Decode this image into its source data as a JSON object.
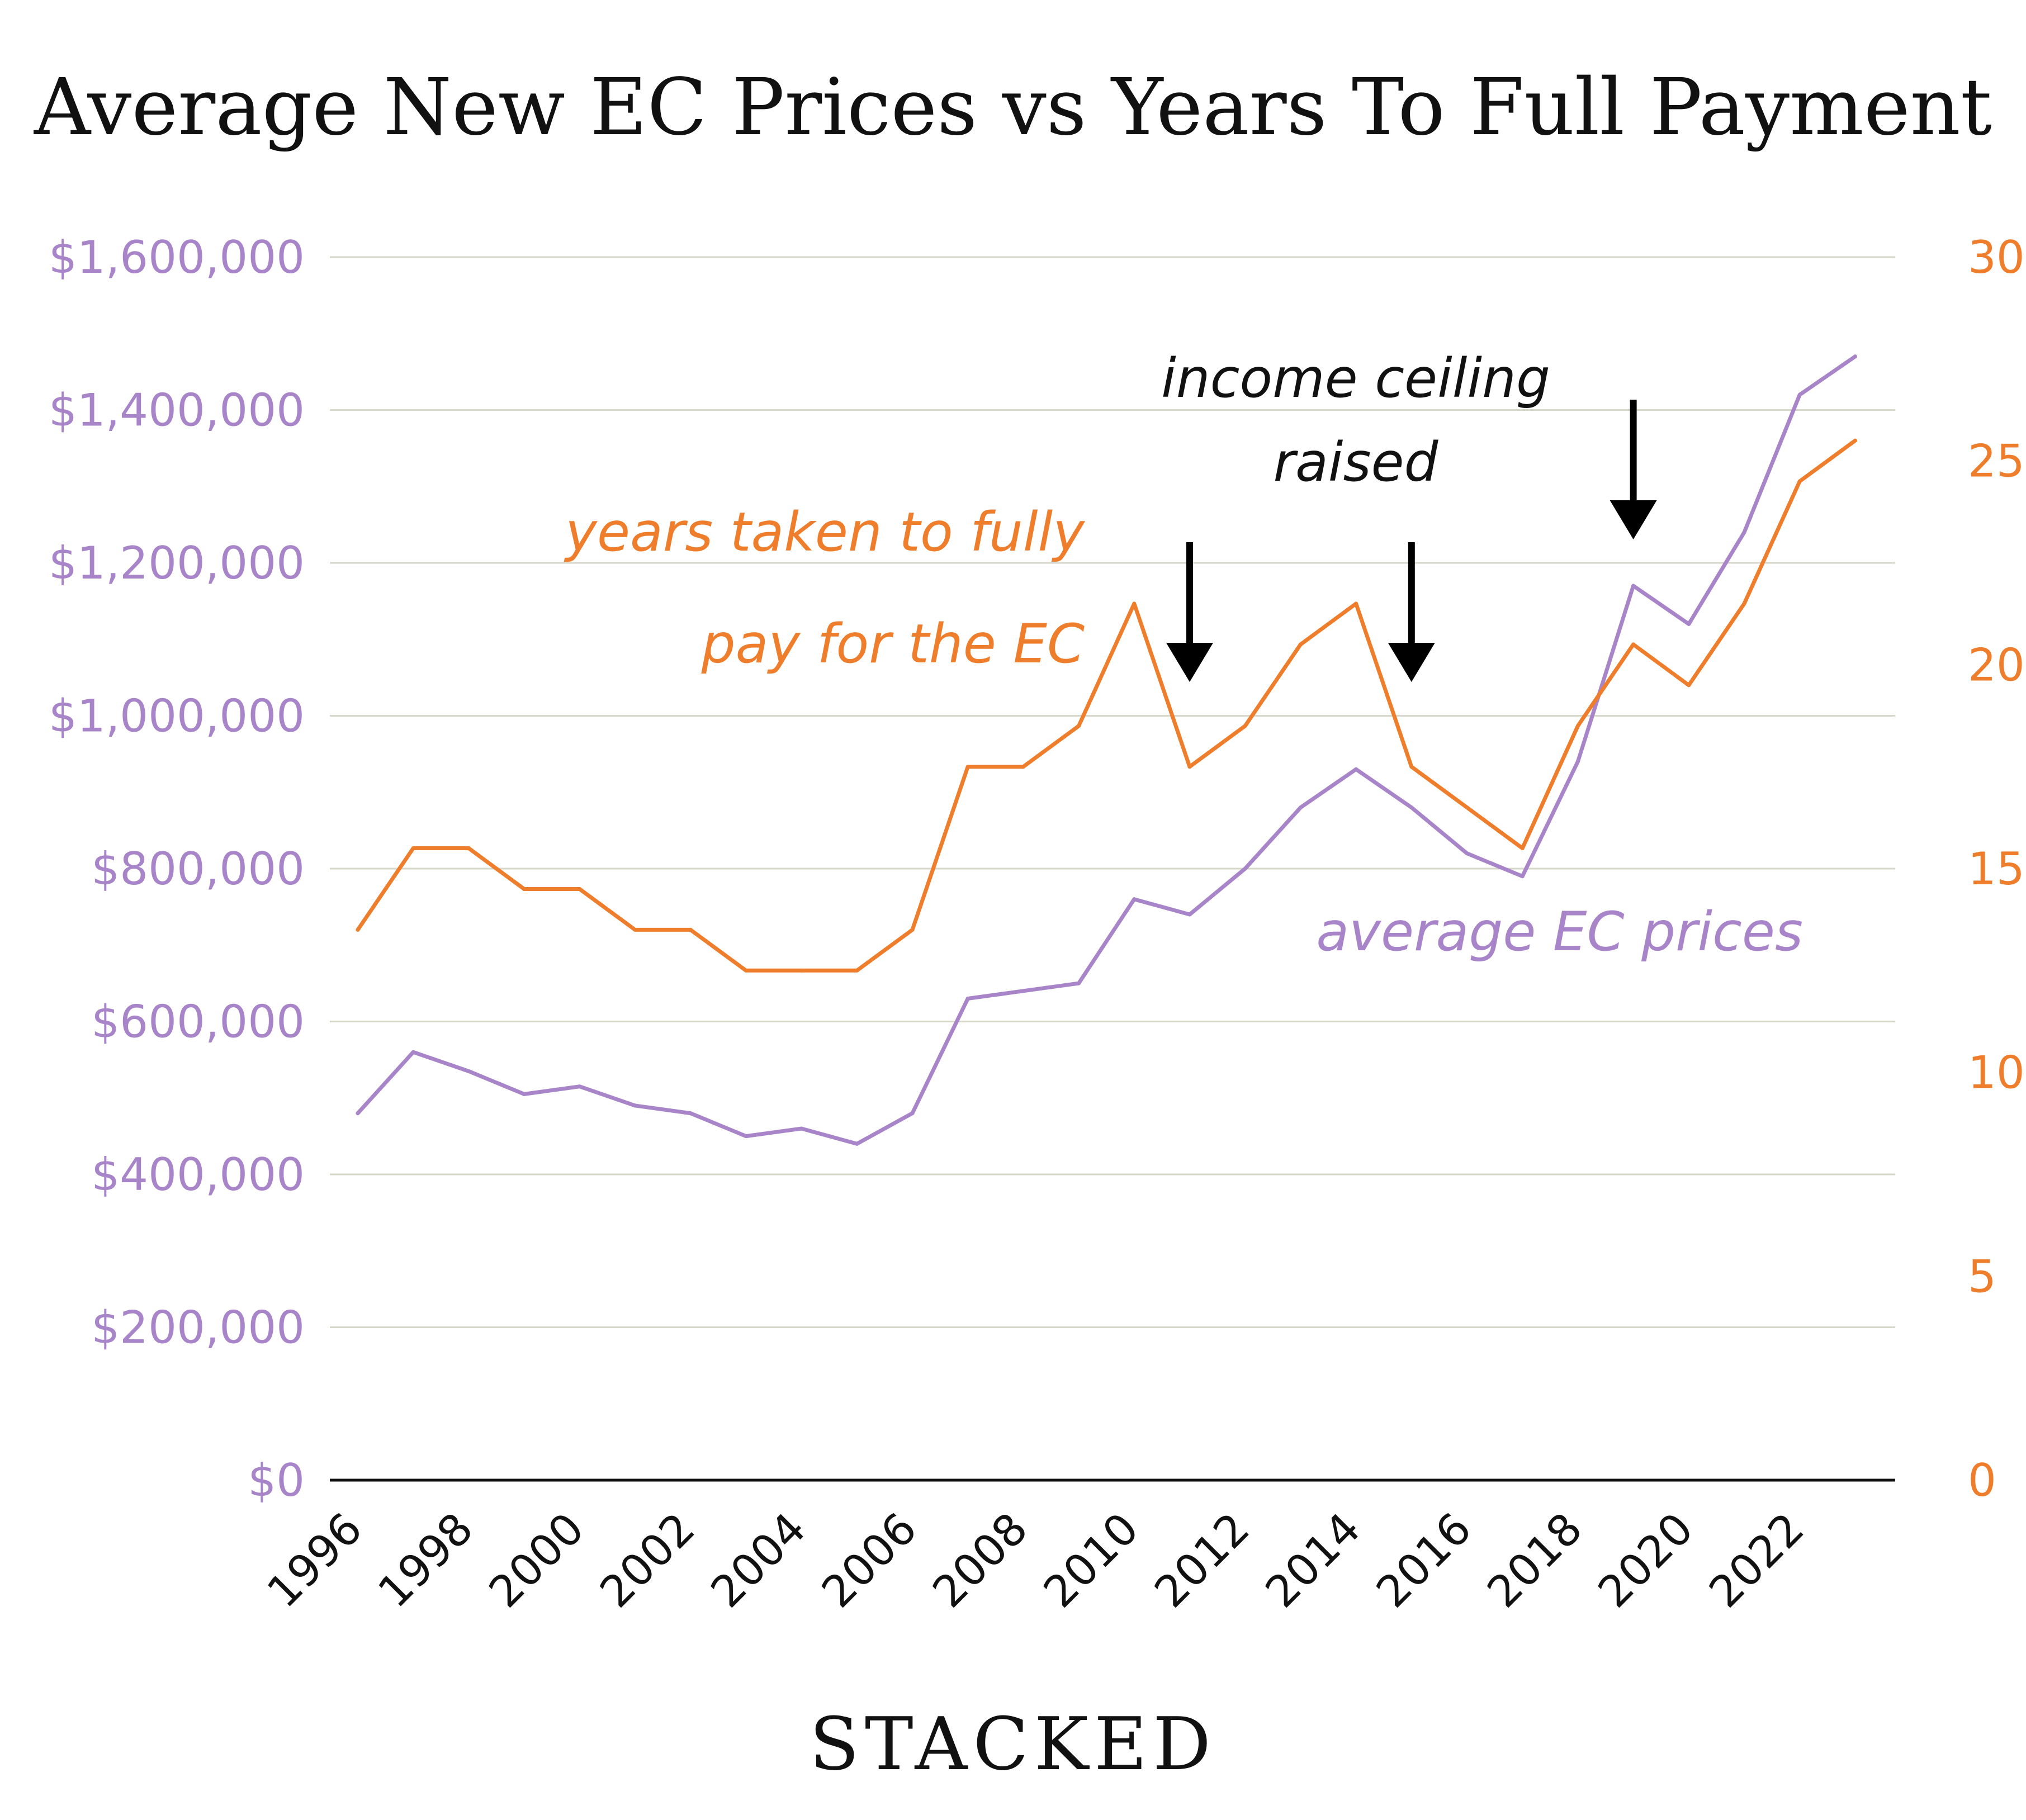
{
  "chart_data": {
    "type": "line",
    "title": "Average New EC Prices vs Years To Full Payment",
    "x": [
      1996,
      1997,
      1998,
      1999,
      2000,
      2001,
      2002,
      2003,
      2004,
      2005,
      2006,
      2007,
      2008,
      2009,
      2010,
      2011,
      2012,
      2013,
      2014,
      2015,
      2016,
      2017,
      2018,
      2019,
      2020,
      2021,
      2022,
      2023
    ],
    "x_tick_labels": [
      "1996",
      "1998",
      "2000",
      "2002",
      "2004",
      "2006",
      "2008",
      "2010",
      "2012",
      "2014",
      "2016",
      "2018",
      "2020",
      "2022"
    ],
    "y_left": {
      "range": [
        0,
        1600000
      ],
      "tick_labels": [
        "$0",
        "$200,000",
        "$400,000",
        "$600,000",
        "$800,000",
        "$1,000,000",
        "$1,200,000",
        "$1,400,000",
        "$1,600,000"
      ],
      "color": "#a884c9"
    },
    "y_right": {
      "range": [
        0,
        30
      ],
      "tick_labels": [
        "0",
        "5",
        "10",
        "15",
        "20",
        "25",
        "30"
      ],
      "color": "#ee7d2c"
    },
    "grid": true,
    "series": [
      {
        "axis": "left",
        "color": "#a884c9",
        "values": [
          480000,
          560000,
          535000,
          505000,
          515000,
          490000,
          480000,
          450000,
          460000,
          440000,
          480000,
          630000,
          640000,
          650000,
          760000,
          740000,
          800000,
          880000,
          930000,
          880000,
          820000,
          790000,
          940000,
          1170000,
          1120000,
          1240000,
          1420000,
          1470000
        ]
      },
      {
        "axis": "right",
        "color": "#ee7d2c",
        "values": [
          13.5,
          15.5,
          15.5,
          14.5,
          14.5,
          13.5,
          13.5,
          12.5,
          12.5,
          12.5,
          13.5,
          17.5,
          17.5,
          18.5,
          21.5,
          17.5,
          18.5,
          20.5,
          21.5,
          17.5,
          16.5,
          15.5,
          18.5,
          20.5,
          19.5,
          21.5,
          24.5,
          25.5
        ]
      }
    ],
    "annotations": {
      "years_label": [
        "years taken to fully",
        "pay for the EC"
      ],
      "price_label": "average EC prices",
      "income_label": [
        "income ceiling",
        "raised"
      ],
      "arrow_years": [
        2011,
        2015,
        2019
      ]
    },
    "footer": "STACKED"
  }
}
